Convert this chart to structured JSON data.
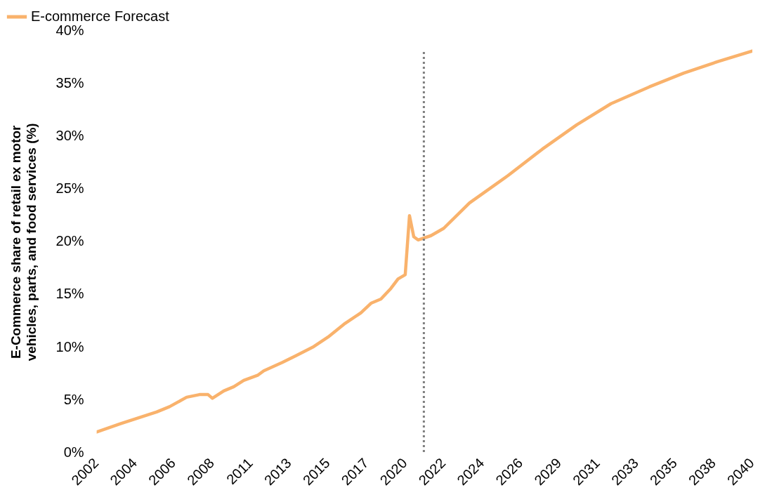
{
  "chart_data": {
    "type": "line",
    "ylabel": "E-Commerce share of retail ex motor vehicles, parts, and food services (%)",
    "series": [
      {
        "name": "E-commerce Forecast",
        "color": "#f9b26c",
        "x": [
          "2002-01",
          "2003-06",
          "2005-07",
          "2006-04",
          "2007-04",
          "2008-01",
          "2008-07",
          "2008-10",
          "2009-06",
          "2010-01",
          "2010-08",
          "2011-06",
          "2011-10",
          "2012-11",
          "2013-08",
          "2014-09",
          "2015-07",
          "2016-07",
          "2017-06",
          "2018-01",
          "2018-08",
          "2019-03",
          "2019-08",
          "2020-01",
          "2020-04",
          "2020-07",
          "2020-10",
          "2021-07",
          "2022-04",
          "2023-10",
          "2026-01",
          "2028-01",
          "2030-01",
          "2032-01",
          "2034-04",
          "2036-04",
          "2038-04",
          "2040-04"
        ],
        "values": [
          2.0,
          2.8,
          3.9,
          4.4,
          5.3,
          5.55,
          5.55,
          5.2,
          5.9,
          6.3,
          6.9,
          7.4,
          7.8,
          8.6,
          9.2,
          10.1,
          11.0,
          12.3,
          13.3,
          14.2,
          14.6,
          15.6,
          16.5,
          16.9,
          22.5,
          20.5,
          20.2,
          20.6,
          21.3,
          23.7,
          26.3,
          28.8,
          31.1,
          33.1,
          34.7,
          36.0,
          37.1,
          38.1
        ]
      }
    ],
    "xlim": [
      "2002-01",
      "2040-04"
    ],
    "xticks": [
      {
        "value": "2002-01",
        "label": "2002"
      },
      {
        "value": "2004-04",
        "label": "2004"
      },
      {
        "value": "2006-07",
        "label": "2006"
      },
      {
        "value": "2008-10",
        "label": "2008"
      },
      {
        "value": "2011-01",
        "label": "2011"
      },
      {
        "value": "2013-04",
        "label": "2013"
      },
      {
        "value": "2015-07",
        "label": "2015"
      },
      {
        "value": "2017-10",
        "label": "2017"
      },
      {
        "value": "2020-01",
        "label": "2020"
      },
      {
        "value": "2022-04",
        "label": "2022"
      },
      {
        "value": "2024-07",
        "label": "2024"
      },
      {
        "value": "2026-10",
        "label": "2026"
      },
      {
        "value": "2029-01",
        "label": "2029"
      },
      {
        "value": "2031-04",
        "label": "2031"
      },
      {
        "value": "2033-07",
        "label": "2033"
      },
      {
        "value": "2035-10",
        "label": "2035"
      },
      {
        "value": "2038-01",
        "label": "2038"
      },
      {
        "value": "2040-04",
        "label": "2040"
      }
    ],
    "ylim": [
      0,
      40
    ],
    "yticks": [
      {
        "value": 0,
        "label": "0%"
      },
      {
        "value": 5,
        "label": "5%"
      },
      {
        "value": 10,
        "label": "10%"
      },
      {
        "value": 15,
        "label": "15%"
      },
      {
        "value": 20,
        "label": "20%"
      },
      {
        "value": 25,
        "label": "25%"
      },
      {
        "value": 30,
        "label": "30%"
      },
      {
        "value": 35,
        "label": "35%"
      },
      {
        "value": 40,
        "label": "40%"
      }
    ],
    "ref_lines": [
      {
        "axis": "x",
        "value": "2021-02",
        "color": "#808080",
        "line_style": "dotted"
      }
    ],
    "grid": false,
    "legend": "top left",
    "marker": "none",
    "line_style": "solid"
  }
}
